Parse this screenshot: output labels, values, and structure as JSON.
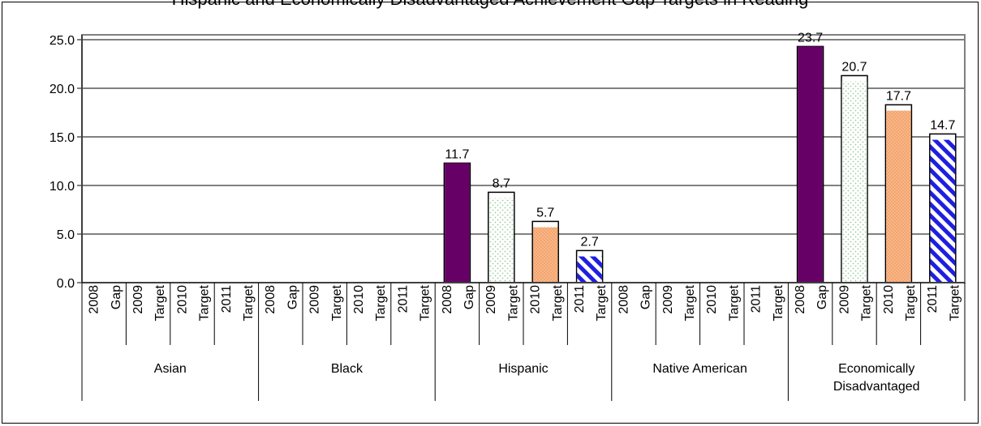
{
  "chart_data": {
    "type": "bar",
    "title": "",
    "xlabel": "",
    "ylabel": "",
    "ylim": [
      0,
      25
    ],
    "y_ticks": [
      "0.0",
      "5.0",
      "10.0",
      "15.0",
      "20.0",
      "25.0"
    ],
    "grid": true,
    "legend": "none",
    "groups": [
      {
        "name": "Asian",
        "sub_labels": [
          "2008",
          "Gap",
          "2009",
          "Target",
          "2010",
          "Target",
          "2011",
          "Target"
        ],
        "values": [
          null,
          null,
          null,
          null
        ]
      },
      {
        "name": "Black",
        "sub_labels": [
          "2008",
          "Gap",
          "2009",
          "Target",
          "2010",
          "Target",
          "2011",
          "Target"
        ],
        "values": [
          null,
          null,
          null,
          null
        ]
      },
      {
        "name": "Hispanic",
        "sub_labels": [
          "2008",
          "Gap",
          "2009",
          "Target",
          "2010",
          "Target",
          "2011",
          "Target"
        ],
        "values": [
          11.7,
          8.7,
          5.7,
          2.7
        ]
      },
      {
        "name": "Native American",
        "sub_labels": [
          "2008",
          "Gap",
          "2009",
          "Target",
          "2010",
          "Target",
          "2011",
          "Target"
        ],
        "values": [
          null,
          null,
          null,
          null
        ]
      },
      {
        "name": "Economically Disadvantaged",
        "sub_labels": [
          "2008",
          "Gap",
          "2009",
          "Target",
          "2010",
          "Target",
          "2011",
          "Target"
        ],
        "values": [
          23.7,
          20.7,
          17.7,
          14.7
        ]
      }
    ],
    "value_labels": [
      "11.7",
      "8.7",
      "5.7",
      "2.7",
      "23.7",
      "20.7",
      "17.7",
      "14.7"
    ],
    "colors": {
      "2008_gap": "#660066",
      "2009_target_dots": "#99cc99",
      "2010_target": "#f4a46c",
      "2011_target": "#1f1fe0",
      "gridline": "#000000",
      "plot_border": "#808080"
    }
  },
  "title_text": "Hispanic and Economically Disadvantaged Achievement Gap Targets in Reading"
}
